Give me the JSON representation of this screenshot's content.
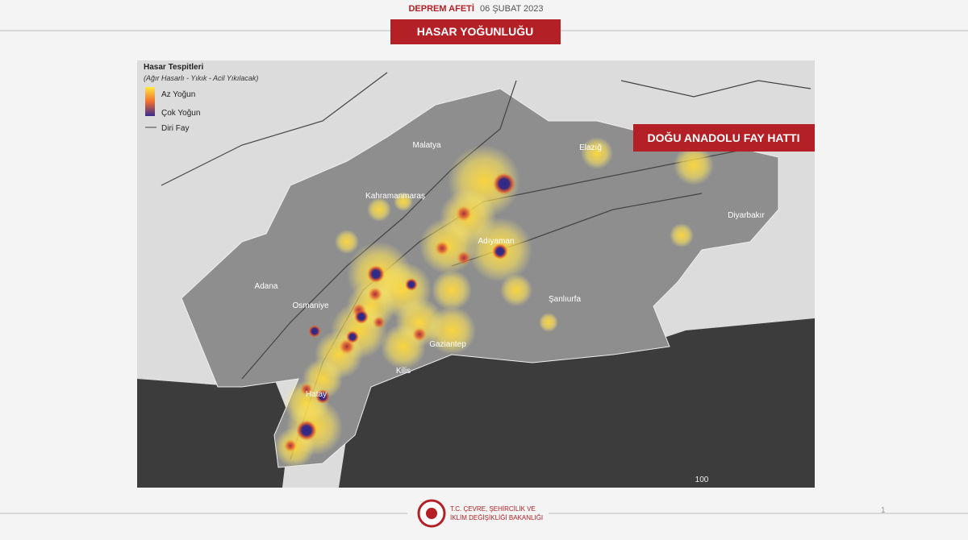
{
  "header": {
    "event": "DEPREM AFETİ",
    "date": "06 ŞUBAT 2023"
  },
  "title": "HASAR YOĞUNLUĞU",
  "map": {
    "legend": {
      "title": "Hasar Tespitleri",
      "subtitle": "(Ağır Hasarlı - Yıkık - Acil Yıkılacak)",
      "items": [
        "Az Yoğun",
        "Çok Yoğun",
        "Diri Fay"
      ]
    },
    "callout": "DOĞU ANADOLU FAY HATTI",
    "cities": [
      "Malatya",
      "Kahramanmaraş",
      "Adıyaman",
      "Elazığ",
      "Diyarbakır",
      "Adana",
      "Osmaniye",
      "Şanlıurfa",
      "Gaziantep",
      "Kilis",
      "Hatay"
    ],
    "scale": "100"
  },
  "footer": {
    "ministry": [
      "T.C. ÇEVRE, ŞEHİRCİLİK VE",
      "İKLİM DEĞİŞİKLİĞİ BAKANLIĞI"
    ],
    "page": "1"
  }
}
